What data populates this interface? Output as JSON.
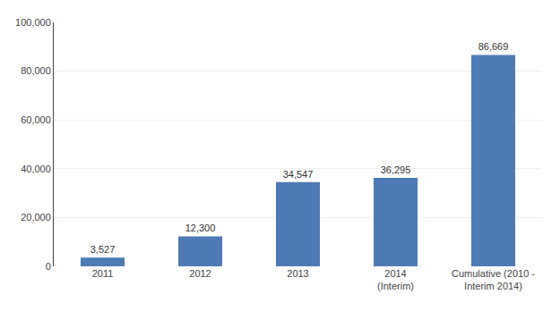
{
  "chart_data": {
    "type": "bar",
    "categories": [
      "2011",
      "2012",
      "2013",
      "2014\n(Interim)",
      "Cumulative (2010 -\nInterim 2014)"
    ],
    "values": [
      3527,
      12300,
      34547,
      36295,
      86669
    ],
    "value_labels": [
      "3,527",
      "12,300",
      "34,547",
      "36,295",
      "86,669"
    ],
    "data_labels": true,
    "color": "#4e7ab5",
    "ylim": [
      0,
      100000
    ],
    "yticks": [
      0,
      {
        "value": 20000,
        "label": "20,000"
      },
      {
        "value": 40000,
        "label": "40,000"
      },
      {
        "value": 60000,
        "label": "60,000"
      },
      {
        "value": 80000,
        "label": "80,000"
      },
      {
        "value": 100000,
        "label": "100,000"
      }
    ],
    "grid": true
  }
}
